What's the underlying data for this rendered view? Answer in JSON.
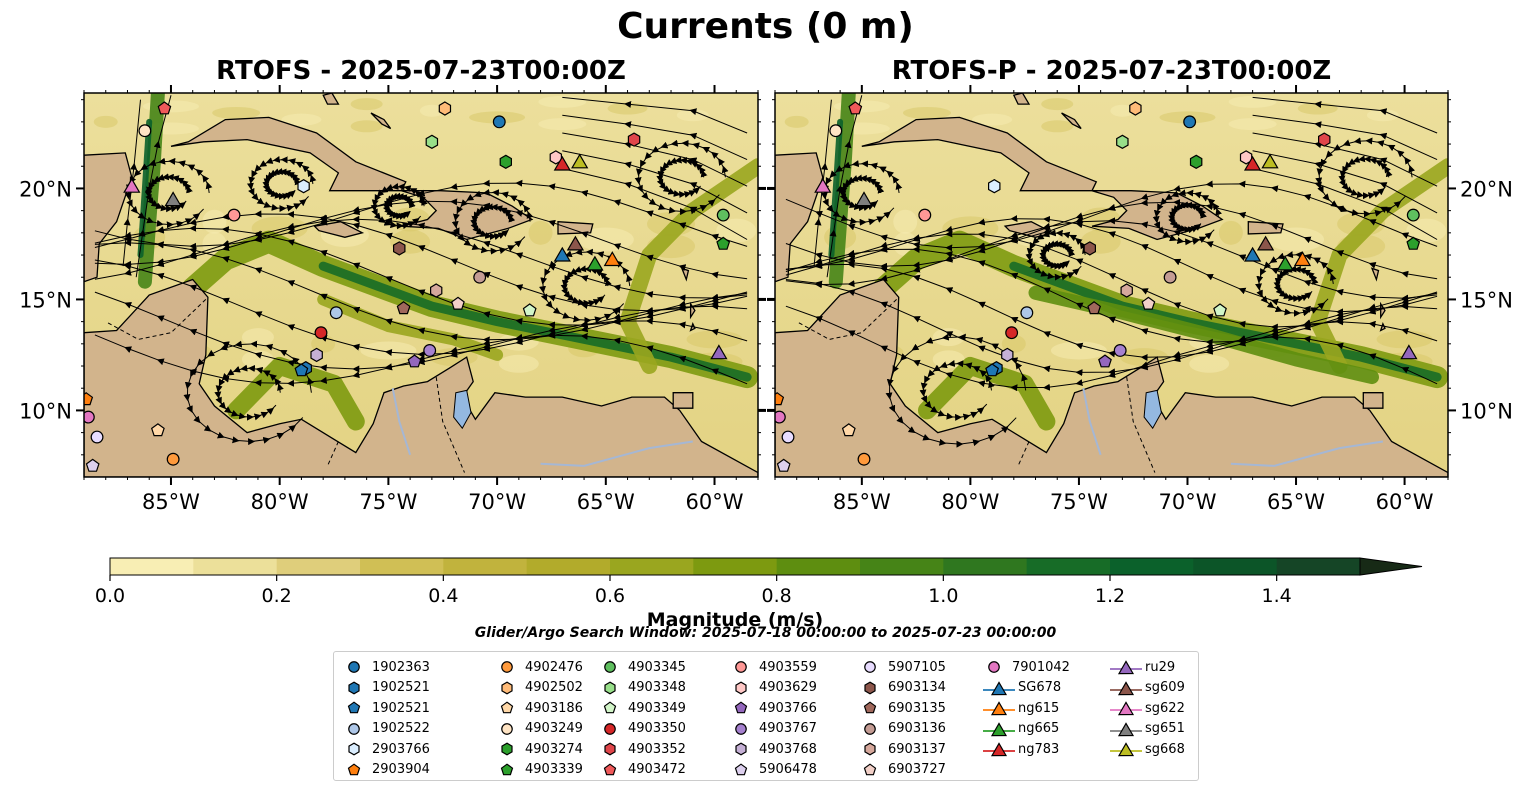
{
  "figure": {
    "suptitle": "Currents (0 m)",
    "search_window": "Glider/Argo Search Window: 2025-07-18 00:00:00 to 2025-07-23 00:00:00"
  },
  "chart_data": [
    {
      "type": "heatmap",
      "title": "RTOFS - 2025-07-23T00:00Z",
      "x_ticks": [
        "85°W",
        "80°W",
        "75°W",
        "70°W",
        "65°W",
        "60°W"
      ],
      "y_ticks": [
        "10°N",
        "15°N",
        "20°N"
      ],
      "lon_range": [
        -89,
        -58
      ],
      "lat_range": [
        7,
        24.3
      ],
      "field": "surface current magnitude (m/s) with streamlines"
    },
    {
      "type": "heatmap",
      "title": "RTOFS-P - 2025-07-23T00:00Z",
      "x_ticks": [
        "85°W",
        "80°W",
        "75°W",
        "70°W",
        "65°W",
        "60°W"
      ],
      "y_ticks": [
        "10°N",
        "15°N",
        "20°N"
      ],
      "lon_range": [
        -89,
        -58
      ],
      "lat_range": [
        7,
        24.3
      ],
      "field": "surface current magnitude (m/s) with streamlines"
    }
  ],
  "colorbar": {
    "label": "Magnitude (m/s)",
    "ticks": [
      "0.0",
      "0.2",
      "0.4",
      "0.6",
      "0.8",
      "1.0",
      "1.2",
      "1.4"
    ],
    "range": [
      0,
      1.5
    ],
    "levels": 15,
    "extend": "max",
    "colors": [
      "#f8eeb4",
      "#ece09a",
      "#dfce7b",
      "#d0bf55",
      "#c1b33d",
      "#b2ab2b",
      "#9aa61f",
      "#7d9a10",
      "#5e8e10",
      "#468417",
      "#2f771f",
      "#176c27",
      "#0b612b",
      "#0c5528",
      "#154526",
      "#1b3a20",
      "#172a16"
    ]
  },
  "legend": {
    "columns": [
      [
        {
          "label": "1902363",
          "marker": "circle",
          "color": "#1f77b4"
        },
        {
          "label": "1902521",
          "marker": "hexagon",
          "color": "#1f77b4"
        },
        {
          "label": "1902521",
          "marker": "pentagon",
          "color": "#1f77b4"
        },
        {
          "label": "1902522",
          "marker": "circle",
          "color": "#aec7e8"
        },
        {
          "label": "2903766",
          "marker": "hexagon",
          "color": "#dbeeff"
        },
        {
          "label": "2903904",
          "marker": "pentagon",
          "color": "#ff7f0e"
        }
      ],
      [
        {
          "label": "4902476",
          "marker": "circle",
          "color": "#ff9a3c"
        },
        {
          "label": "4902502",
          "marker": "hexagon",
          "color": "#ffbb78"
        },
        {
          "label": "4903186",
          "marker": "pentagon",
          "color": "#ffd8a8"
        },
        {
          "label": "4903249",
          "marker": "circle",
          "color": "#ffe4c4"
        },
        {
          "label": "4903274",
          "marker": "hexagon",
          "color": "#2ca02c"
        },
        {
          "label": "4903339",
          "marker": "pentagon",
          "color": "#2ca02c"
        }
      ],
      [
        {
          "label": "4903345",
          "marker": "circle",
          "color": "#5fbf5f"
        },
        {
          "label": "4903348",
          "marker": "hexagon",
          "color": "#98df8a"
        },
        {
          "label": "4903349",
          "marker": "pentagon",
          "color": "#d2f5c8"
        },
        {
          "label": "4903350",
          "marker": "circle",
          "color": "#d62728"
        },
        {
          "label": "4903352",
          "marker": "hexagon",
          "color": "#e0454a"
        },
        {
          "label": "4903472",
          "marker": "pentagon",
          "color": "#f0595a"
        }
      ],
      [
        {
          "label": "4903559",
          "marker": "circle",
          "color": "#ff9896"
        },
        {
          "label": "4903629",
          "marker": "hexagon",
          "color": "#ffc8c6"
        },
        {
          "label": "4903766",
          "marker": "pentagon",
          "color": "#9467bd"
        },
        {
          "label": "4903767",
          "marker": "circle",
          "color": "#a681cf"
        },
        {
          "label": "4903768",
          "marker": "hexagon",
          "color": "#c5b0d5"
        },
        {
          "label": "5906478",
          "marker": "pentagon",
          "color": "#ddd0ee"
        }
      ],
      [
        {
          "label": "5907105",
          "marker": "circle",
          "color": "#e8dcff"
        },
        {
          "label": "6903134",
          "marker": "hexagon",
          "color": "#8c564b"
        },
        {
          "label": "6903135",
          "marker": "pentagon",
          "color": "#a0685c"
        },
        {
          "label": "6903136",
          "marker": "circle",
          "color": "#c49c94"
        },
        {
          "label": "6903137",
          "marker": "hexagon",
          "color": "#d6a89c"
        },
        {
          "label": "6903727",
          "marker": "pentagon",
          "color": "#f2d0c8"
        }
      ],
      [
        {
          "label": "7901042",
          "marker": "circle",
          "color": "#e377c2"
        },
        {
          "label": "SG678",
          "marker": "triangle",
          "color": "#1f77b4"
        },
        {
          "label": "ng615",
          "marker": "triangle",
          "color": "#ff7f0e"
        },
        {
          "label": "ng665",
          "marker": "triangle",
          "color": "#2ca02c"
        },
        {
          "label": "ng783",
          "marker": "triangle",
          "color": "#d62728"
        }
      ],
      [
        {
          "label": "ru29",
          "marker": "triangle",
          "color": "#9467bd"
        },
        {
          "label": "sg609",
          "marker": "triangle",
          "color": "#8c564b"
        },
        {
          "label": "sg622",
          "marker": "triangle",
          "color": "#e377c2"
        },
        {
          "label": "sg651",
          "marker": "triangle",
          "color": "#7f7f7f"
        },
        {
          "label": "sg668",
          "marker": "triangle",
          "color": "#bcbd22"
        }
      ]
    ]
  },
  "markers": [
    {
      "id": "1902363",
      "marker": "circle",
      "color": "#1f77b4",
      "lon": -69.9,
      "lat": 23.0
    },
    {
      "id": "1902521",
      "marker": "hexagon",
      "color": "#1f77b4",
      "lon": -78.8,
      "lat": 11.9
    },
    {
      "id": "1902521",
      "marker": "pentagon",
      "color": "#1f77b4",
      "lon": -79.0,
      "lat": 11.8
    },
    {
      "id": "1902522",
      "marker": "circle",
      "color": "#aec7e8",
      "lon": -77.4,
      "lat": 14.4
    },
    {
      "id": "2903766",
      "marker": "hexagon",
      "color": "#dbeeff",
      "lon": -78.9,
      "lat": 20.1
    },
    {
      "id": "2903904",
      "marker": "pentagon",
      "color": "#ff7f0e",
      "lon": -88.9,
      "lat": 10.5
    },
    {
      "id": "4902476",
      "marker": "circle",
      "color": "#ff9a3c",
      "lon": -84.9,
      "lat": 7.8
    },
    {
      "id": "4902502",
      "marker": "hexagon",
      "color": "#ffbb78",
      "lon": -72.4,
      "lat": 23.6
    },
    {
      "id": "4903186",
      "marker": "pentagon",
      "color": "#ffd8a8",
      "lon": -85.6,
      "lat": 9.1
    },
    {
      "id": "4903249",
      "marker": "circle",
      "color": "#ffe4c4",
      "lon": -86.2,
      "lat": 22.6
    },
    {
      "id": "4903274",
      "marker": "hexagon",
      "color": "#2ca02c",
      "lon": -69.6,
      "lat": 21.2
    },
    {
      "id": "4903339",
      "marker": "pentagon",
      "color": "#2ca02c",
      "lon": -59.6,
      "lat": 17.5
    },
    {
      "id": "4903345",
      "marker": "circle",
      "color": "#5fbf5f",
      "lon": -59.6,
      "lat": 18.8
    },
    {
      "id": "4903348",
      "marker": "hexagon",
      "color": "#98df8a",
      "lon": -73.0,
      "lat": 22.1
    },
    {
      "id": "4903349",
      "marker": "pentagon",
      "color": "#d2f5c8",
      "lon": -68.5,
      "lat": 14.5
    },
    {
      "id": "4903350",
      "marker": "circle",
      "color": "#d62728",
      "lon": -78.1,
      "lat": 13.5
    },
    {
      "id": "4903352",
      "marker": "hexagon",
      "color": "#e0454a",
      "lon": -63.7,
      "lat": 22.2
    },
    {
      "id": "4903472",
      "marker": "pentagon",
      "color": "#f0595a",
      "lon": -85.3,
      "lat": 23.6
    },
    {
      "id": "4903559",
      "marker": "circle",
      "color": "#ff9896",
      "lon": -82.1,
      "lat": 18.8
    },
    {
      "id": "4903629",
      "marker": "hexagon",
      "color": "#ffc8c6",
      "lon": -67.3,
      "lat": 21.4
    },
    {
      "id": "4903766",
      "marker": "pentagon",
      "color": "#9467bd",
      "lon": -73.8,
      "lat": 12.2
    },
    {
      "id": "4903767",
      "marker": "circle",
      "color": "#a681cf",
      "lon": -73.1,
      "lat": 12.7
    },
    {
      "id": "4903768",
      "marker": "hexagon",
      "color": "#c5b0d5",
      "lon": -78.3,
      "lat": 12.5
    },
    {
      "id": "5906478",
      "marker": "pentagon",
      "color": "#ddd0ee",
      "lon": -88.6,
      "lat": 7.5
    },
    {
      "id": "5907105",
      "marker": "circle",
      "color": "#e8dcff",
      "lon": -88.4,
      "lat": 8.8
    },
    {
      "id": "6903134",
      "marker": "hexagon",
      "color": "#8c564b",
      "lon": -74.5,
      "lat": 17.3
    },
    {
      "id": "6903135",
      "marker": "pentagon",
      "color": "#a0685c",
      "lon": -74.3,
      "lat": 14.6
    },
    {
      "id": "6903136",
      "marker": "circle",
      "color": "#c49c94",
      "lon": -70.8,
      "lat": 16.0
    },
    {
      "id": "6903137",
      "marker": "hexagon",
      "color": "#d6a89c",
      "lon": -72.8,
      "lat": 15.4
    },
    {
      "id": "6903727",
      "marker": "pentagon",
      "color": "#f2d0c8",
      "lon": -71.8,
      "lat": 14.8
    },
    {
      "id": "7901042",
      "marker": "circle",
      "color": "#e377c2",
      "lon": -88.8,
      "lat": 9.7
    },
    {
      "id": "SG678",
      "marker": "triangle",
      "color": "#1f77b4",
      "lon": -67.0,
      "lat": 17.0
    },
    {
      "id": "ng615",
      "marker": "triangle",
      "color": "#ff7f0e",
      "lon": -64.7,
      "lat": 16.8
    },
    {
      "id": "ng665",
      "marker": "triangle",
      "color": "#2ca02c",
      "lon": -65.5,
      "lat": 16.6
    },
    {
      "id": "ng783",
      "marker": "triangle",
      "color": "#d62728",
      "lon": -67.0,
      "lat": 21.1
    },
    {
      "id": "ru29",
      "marker": "triangle",
      "color": "#9467bd",
      "lon": -59.8,
      "lat": 12.6
    },
    {
      "id": "sg609",
      "marker": "triangle",
      "color": "#8c564b",
      "lon": -66.4,
      "lat": 17.5
    },
    {
      "id": "sg622",
      "marker": "triangle",
      "color": "#e377c2",
      "lon": -86.8,
      "lat": 20.1
    },
    {
      "id": "sg651",
      "marker": "triangle",
      "color": "#7f7f7f",
      "lon": -84.9,
      "lat": 19.5
    },
    {
      "id": "sg668",
      "marker": "triangle",
      "color": "#bcbd22",
      "lon": -66.2,
      "lat": 21.2
    }
  ]
}
